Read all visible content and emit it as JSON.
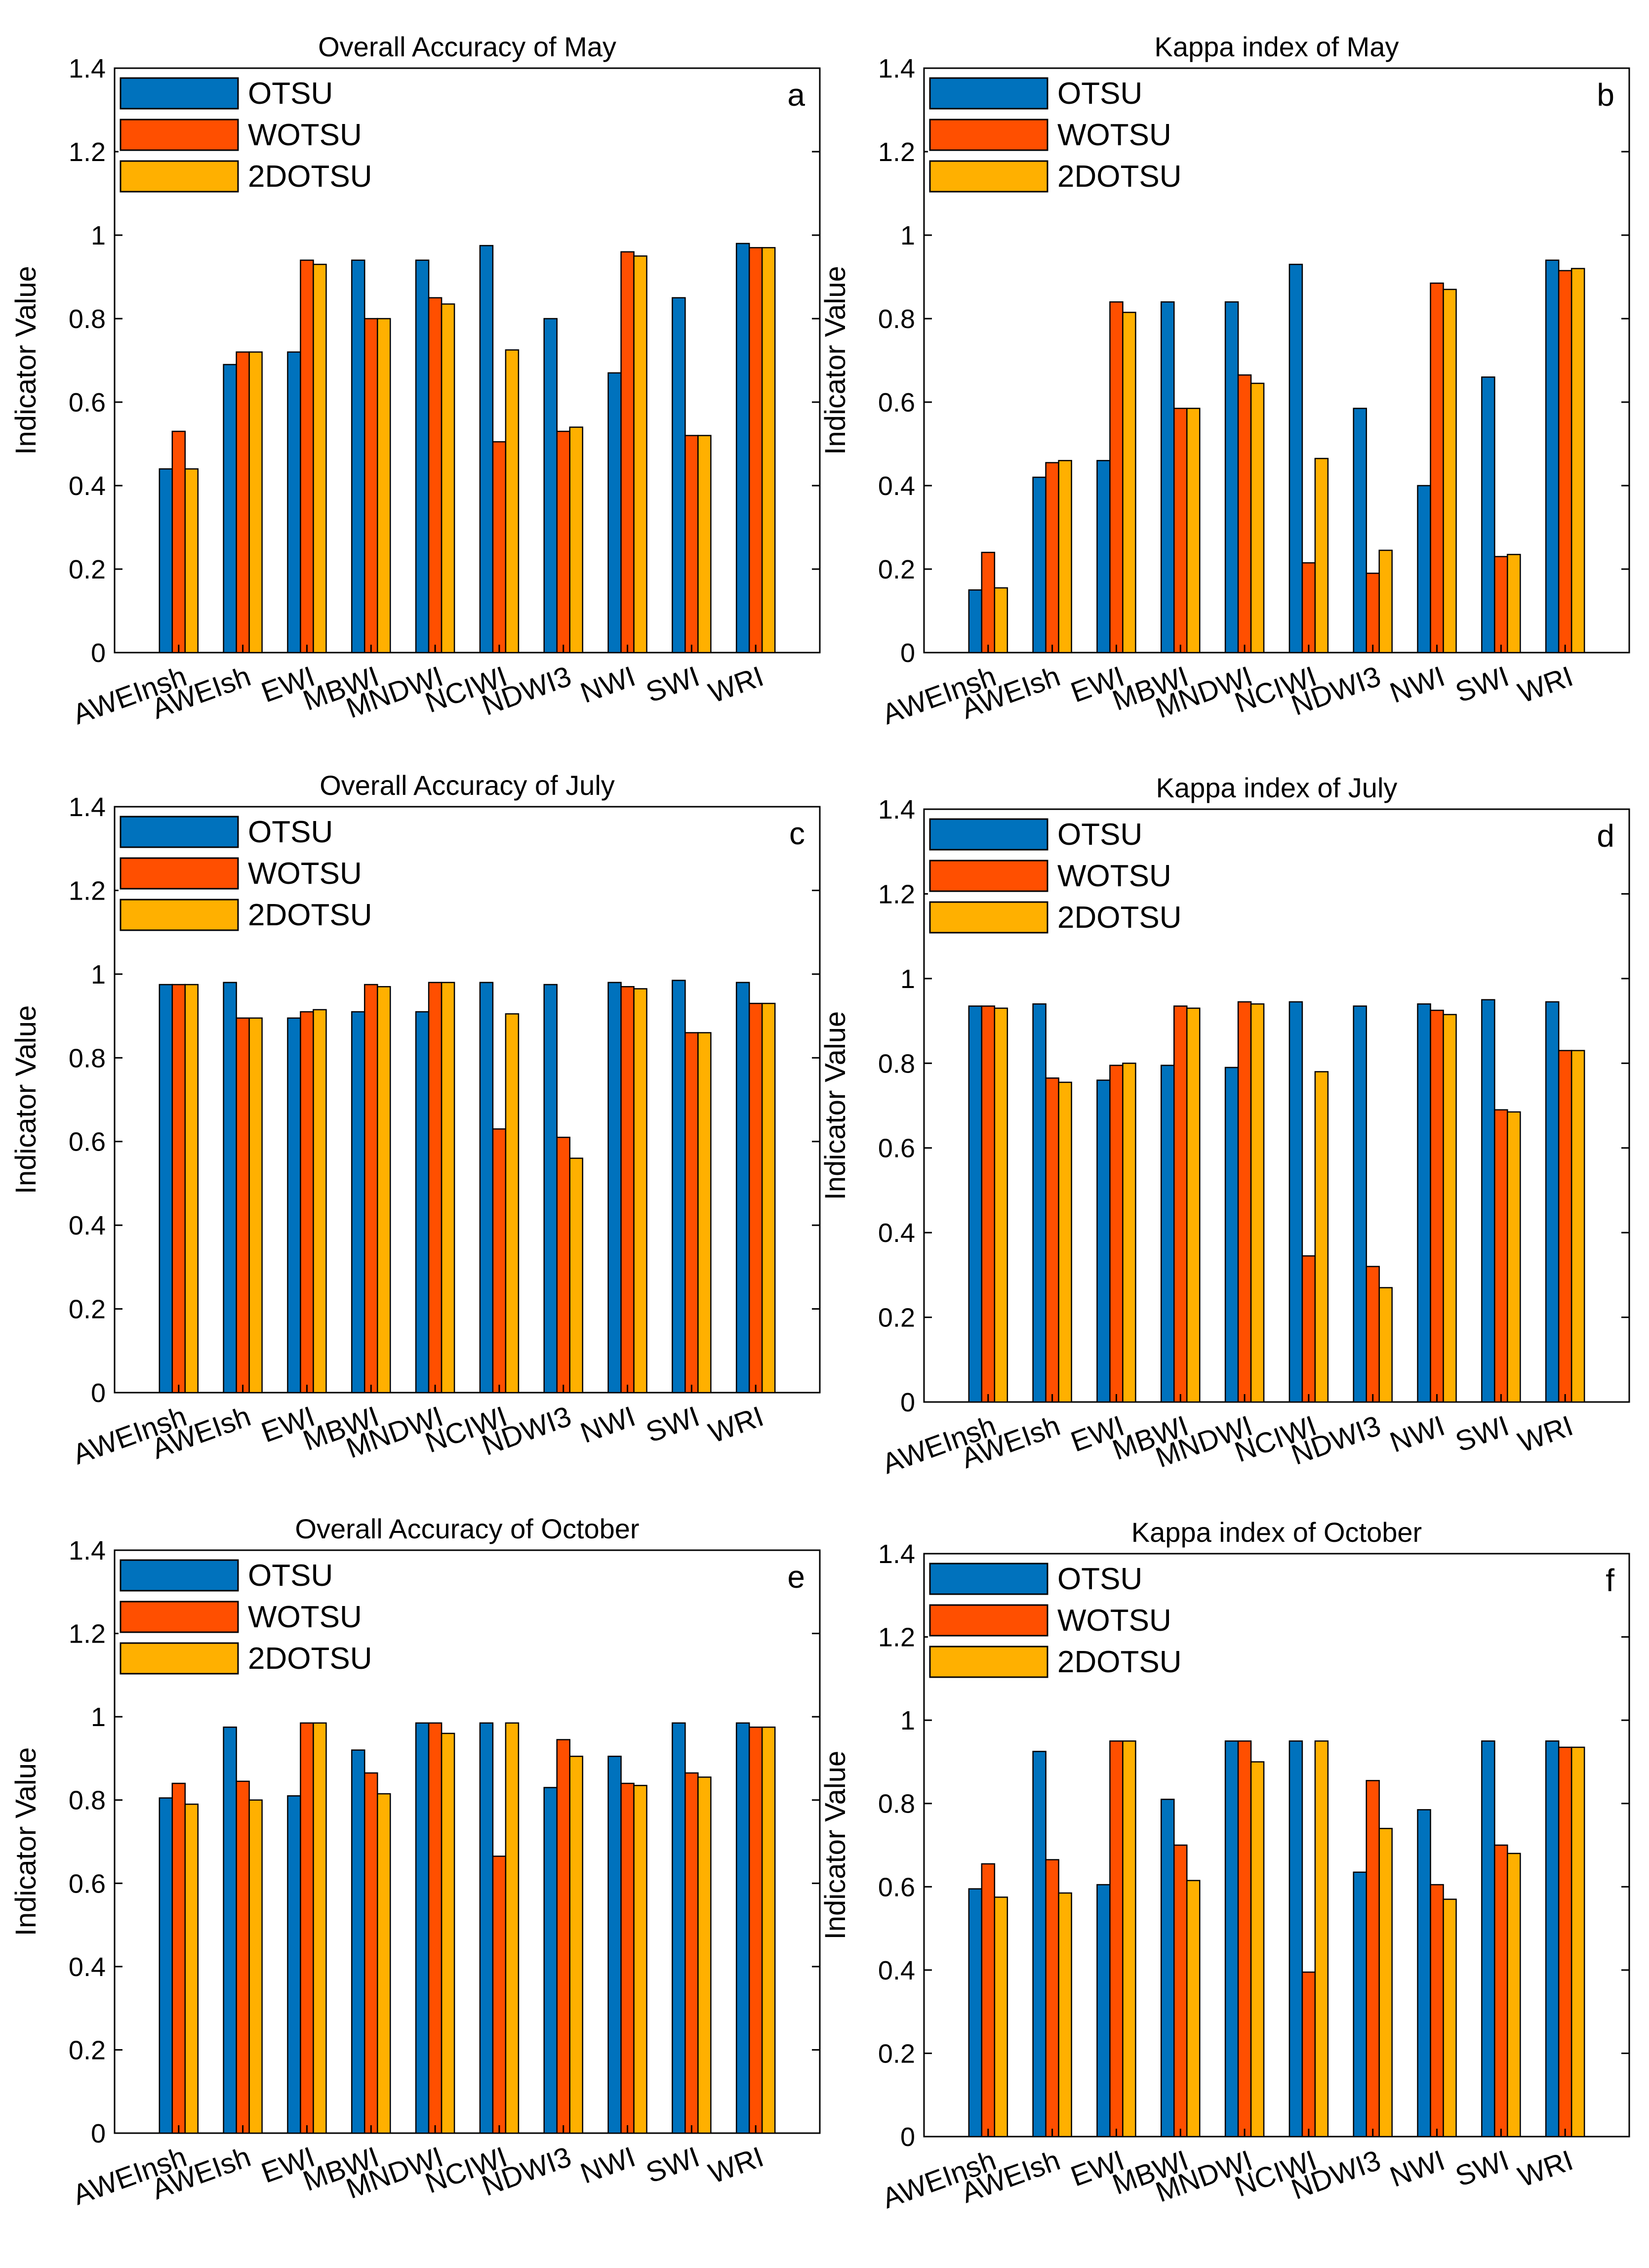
{
  "legend_labels": [
    "OTSU",
    "WOTSU",
    "2DOTSU"
  ],
  "colors": {
    "OTSU": "#0072bd",
    "WOTSU": "#ff4f00",
    "2DOTSU": "#ffb000",
    "axis": "#000000"
  },
  "chart_data": [
    {
      "type": "bar",
      "panel": "a",
      "title": "Overall Accuracy of May",
      "xlabel": "",
      "ylabel": "Indicator Value",
      "ylim": [
        0,
        1.4
      ],
      "yticks": [
        "0",
        "0.2",
        "0.4",
        "0.6",
        "0.8",
        "1",
        "1.2",
        "1.4"
      ],
      "legend": "top-left",
      "categories": [
        "AWEInsh",
        "AWEIsh",
        "EWI",
        "MBWI",
        "MNDWI",
        "NCIWI",
        "NDWI3",
        "NWI",
        "SWI",
        "WRI"
      ],
      "series": [
        {
          "name": "OTSU",
          "values": [
            0.44,
            0.69,
            0.72,
            0.94,
            0.94,
            0.975,
            0.8,
            0.67,
            0.85,
            0.98
          ]
        },
        {
          "name": "WOTSU",
          "values": [
            0.53,
            0.72,
            0.94,
            0.8,
            0.85,
            0.505,
            0.53,
            0.96,
            0.52,
            0.97
          ]
        },
        {
          "name": "2DOTSU",
          "values": [
            0.44,
            0.72,
            0.93,
            0.8,
            0.835,
            0.725,
            0.54,
            0.95,
            0.52,
            0.97
          ]
        }
      ]
    },
    {
      "type": "bar",
      "panel": "b",
      "title": "Kappa index of May",
      "xlabel": "",
      "ylabel": "Indicator Value",
      "ylim": [
        0,
        1.4
      ],
      "yticks": [
        "0",
        "0.2",
        "0.4",
        "0.6",
        "0.8",
        "1",
        "1.2",
        "1.4"
      ],
      "legend": "top-left",
      "categories": [
        "AWEInsh",
        "AWEIsh",
        "EWI",
        "MBWI",
        "MNDWI",
        "NCIWI",
        "NDWI3",
        "NWI",
        "SWI",
        "WRI"
      ],
      "series": [
        {
          "name": "OTSU",
          "values": [
            0.15,
            0.42,
            0.46,
            0.84,
            0.84,
            0.93,
            0.585,
            0.4,
            0.66,
            0.94
          ]
        },
        {
          "name": "WOTSU",
          "values": [
            0.24,
            0.455,
            0.84,
            0.585,
            0.665,
            0.215,
            0.19,
            0.885,
            0.23,
            0.915
          ]
        },
        {
          "name": "2DOTSU",
          "values": [
            0.155,
            0.46,
            0.815,
            0.585,
            0.645,
            0.465,
            0.245,
            0.87,
            0.235,
            0.92
          ]
        }
      ]
    },
    {
      "type": "bar",
      "panel": "c",
      "title": "Overall Accuracy of July",
      "xlabel": "",
      "ylabel": "Indicator Value",
      "ylim": [
        0,
        1.4
      ],
      "yticks": [
        "0",
        "0.2",
        "0.4",
        "0.6",
        "0.8",
        "1",
        "1.2",
        "1.4"
      ],
      "legend": "top-left",
      "categories": [
        "AWEInsh",
        "AWEIsh",
        "EWI",
        "MBWI",
        "MNDWI",
        "NCIWI",
        "NDWI3",
        "NWI",
        "SWI",
        "WRI"
      ],
      "series": [
        {
          "name": "OTSU",
          "values": [
            0.975,
            0.98,
            0.895,
            0.91,
            0.91,
            0.98,
            0.975,
            0.98,
            0.985,
            0.98
          ]
        },
        {
          "name": "WOTSU",
          "values": [
            0.975,
            0.895,
            0.91,
            0.975,
            0.98,
            0.63,
            0.61,
            0.97,
            0.86,
            0.93
          ]
        },
        {
          "name": "2DOTSU",
          "values": [
            0.975,
            0.895,
            0.915,
            0.97,
            0.98,
            0.905,
            0.56,
            0.965,
            0.86,
            0.93
          ]
        }
      ]
    },
    {
      "type": "bar",
      "panel": "d",
      "title": "Kappa index of July",
      "xlabel": "",
      "ylabel": "Indicator Value",
      "ylim": [
        0,
        1.4
      ],
      "yticks": [
        "0",
        "0.2",
        "0.4",
        "0.6",
        "0.8",
        "1",
        "1.2",
        "1.4"
      ],
      "legend": "top-left",
      "categories": [
        "AWEInsh",
        "AWEIsh",
        "EWI",
        "MBWI",
        "MNDWI",
        "NCIWI",
        "NDWI3",
        "NWI",
        "SWI",
        "WRI"
      ],
      "series": [
        {
          "name": "OTSU",
          "values": [
            0.935,
            0.94,
            0.76,
            0.795,
            0.79,
            0.945,
            0.935,
            0.94,
            0.95,
            0.945
          ]
        },
        {
          "name": "WOTSU",
          "values": [
            0.935,
            0.765,
            0.795,
            0.935,
            0.945,
            0.345,
            0.32,
            0.925,
            0.69,
            0.83
          ]
        },
        {
          "name": "2DOTSU",
          "values": [
            0.93,
            0.755,
            0.8,
            0.93,
            0.94,
            0.78,
            0.27,
            0.915,
            0.685,
            0.83
          ]
        }
      ]
    },
    {
      "type": "bar",
      "panel": "e",
      "title": "Overall Accuracy of October",
      "xlabel": "",
      "ylabel": "Indicator Value",
      "ylim": [
        0,
        1.4
      ],
      "yticks": [
        "0",
        "0.2",
        "0.4",
        "0.6",
        "0.8",
        "1",
        "1.2",
        "1.4"
      ],
      "legend": "top-left",
      "categories": [
        "AWEInsh",
        "AWEIsh",
        "EWI",
        "MBWI",
        "MNDWI",
        "NCIWI",
        "NDWI3",
        "NWI",
        "SWI",
        "WRI"
      ],
      "series": [
        {
          "name": "OTSU",
          "values": [
            0.805,
            0.975,
            0.81,
            0.92,
            0.985,
            0.985,
            0.83,
            0.905,
            0.985,
            0.985
          ]
        },
        {
          "name": "WOTSU",
          "values": [
            0.84,
            0.845,
            0.985,
            0.865,
            0.985,
            0.665,
            0.945,
            0.84,
            0.865,
            0.975
          ]
        },
        {
          "name": "2DOTSU",
          "values": [
            0.79,
            0.8,
            0.985,
            0.815,
            0.96,
            0.985,
            0.905,
            0.835,
            0.855,
            0.975
          ]
        }
      ]
    },
    {
      "type": "bar",
      "panel": "f",
      "title": "Kappa index of October",
      "xlabel": "",
      "ylabel": "Indicator Value",
      "ylim": [
        0,
        1.4
      ],
      "yticks": [
        "0",
        "0.2",
        "0.4",
        "0.6",
        "0.8",
        "1",
        "1.2",
        "1.4"
      ],
      "legend": "top-left",
      "categories": [
        "AWEInsh",
        "AWEIsh",
        "EWI",
        "MBWI",
        "MNDWI",
        "NCIWI",
        "NDWI3",
        "NWI",
        "SWI",
        "WRI"
      ],
      "series": [
        {
          "name": "OTSU",
          "values": [
            0.595,
            0.925,
            0.605,
            0.81,
            0.95,
            0.95,
            0.635,
            0.785,
            0.95,
            0.95
          ]
        },
        {
          "name": "WOTSU",
          "values": [
            0.655,
            0.665,
            0.95,
            0.7,
            0.95,
            0.395,
            0.855,
            0.605,
            0.7,
            0.935
          ]
        },
        {
          "name": "2DOTSU",
          "values": [
            0.575,
            0.585,
            0.95,
            0.615,
            0.9,
            0.95,
            0.74,
            0.57,
            0.68,
            0.935
          ]
        }
      ]
    }
  ]
}
